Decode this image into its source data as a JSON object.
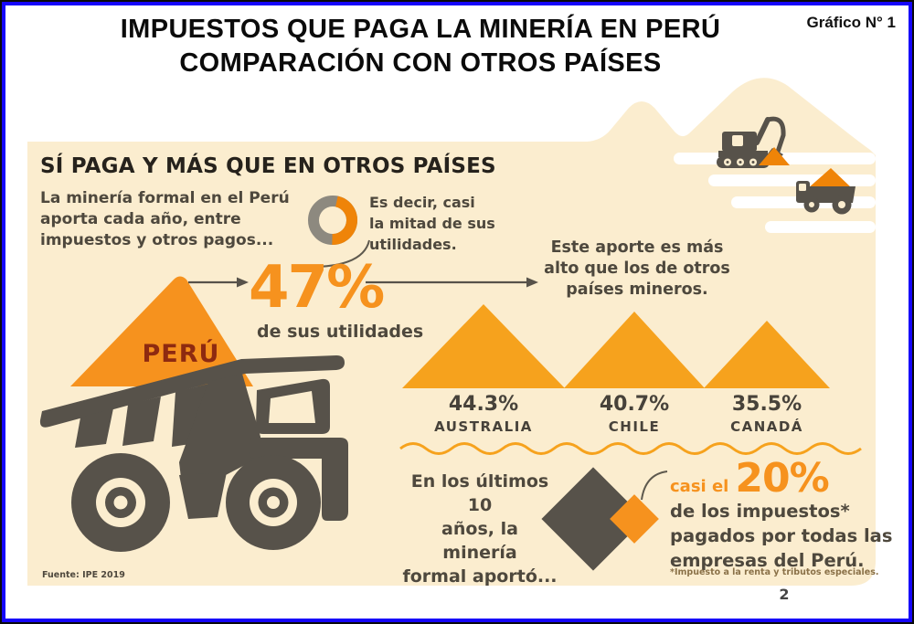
{
  "header": {
    "title_line1": "IMPUESTOS QUE PAGA LA MINERÍA EN PERÚ",
    "title_line2": "COMPARACIÓN CON OTROS PAÍSES",
    "graphic_label": "Gráfico N° 1"
  },
  "panel": {
    "heading": "SÍ PAGA Y MÁS QUE EN OTROS PAÍSES",
    "intro": [
      "La minería formal en el Perú",
      "aporta cada año, entre",
      "impuestos y otros pagos..."
    ],
    "donut_note": [
      "Es decir, casi",
      "la mitad de sus",
      "utilidades."
    ],
    "peru": {
      "value": "47%",
      "caption": "de sus utilidades",
      "label": "PERÚ"
    },
    "comparison": [
      "Este aporte es más",
      "alto que los de otros",
      "países mineros."
    ],
    "countries": [
      {
        "pct": "44.3%",
        "name": "AUSTRALIA"
      },
      {
        "pct": "40.7%",
        "name": "CHILE"
      },
      {
        "pct": "35.5%",
        "name": "CANADÁ"
      }
    ],
    "bottom": {
      "lead": [
        "En los últimos 10",
        "años, la minería",
        "formal aportó..."
      ],
      "highlight_prefix": "casi el",
      "highlight_value": "20%",
      "highlight_text": [
        "de los impuestos*",
        "pagados por todas las",
        "empresas del Perú."
      ],
      "footnote": "*Impuesto a la renta y tributos especiales."
    },
    "source": "Fuente: IPE 2019"
  },
  "footer": {
    "page_number": "2"
  },
  "colors": {
    "panel_cream": "#fbedcf",
    "amber": "#f6a21d",
    "orange": "#f6921e",
    "deep_orange": "#ef8408",
    "dark": "#57524a",
    "text_dark": "#4e483d",
    "maroon": "#8e2a10",
    "border_blue": "#1606f9",
    "donut_gray": "#8d897f"
  },
  "chart_data": {
    "type": "bar",
    "title": "IMPUESTOS QUE PAGA LA MINERÍA EN PERÚ — COMPARACIÓN CON OTROS PAÍSES",
    "subtitle": "SÍ PAGA Y MÁS QUE EN OTROS PAÍSES",
    "categories": [
      "PERÚ",
      "AUSTRALIA",
      "CHILE",
      "CANADÁ"
    ],
    "values": [
      47,
      44.3,
      40.7,
      35.5
    ],
    "unit": "% de sus utilidades (impuestos y otros pagos)",
    "annotations": [
      "47% = casi la mitad de sus utilidades",
      "Este aporte es más alto que los de otros países mineros.",
      "En los últimos 10 años, la minería formal aportó casi el 20% de los impuestos pagados por todas las empresas del Perú."
    ],
    "source": "Fuente: IPE 2019",
    "legend": false,
    "grid": false
  }
}
